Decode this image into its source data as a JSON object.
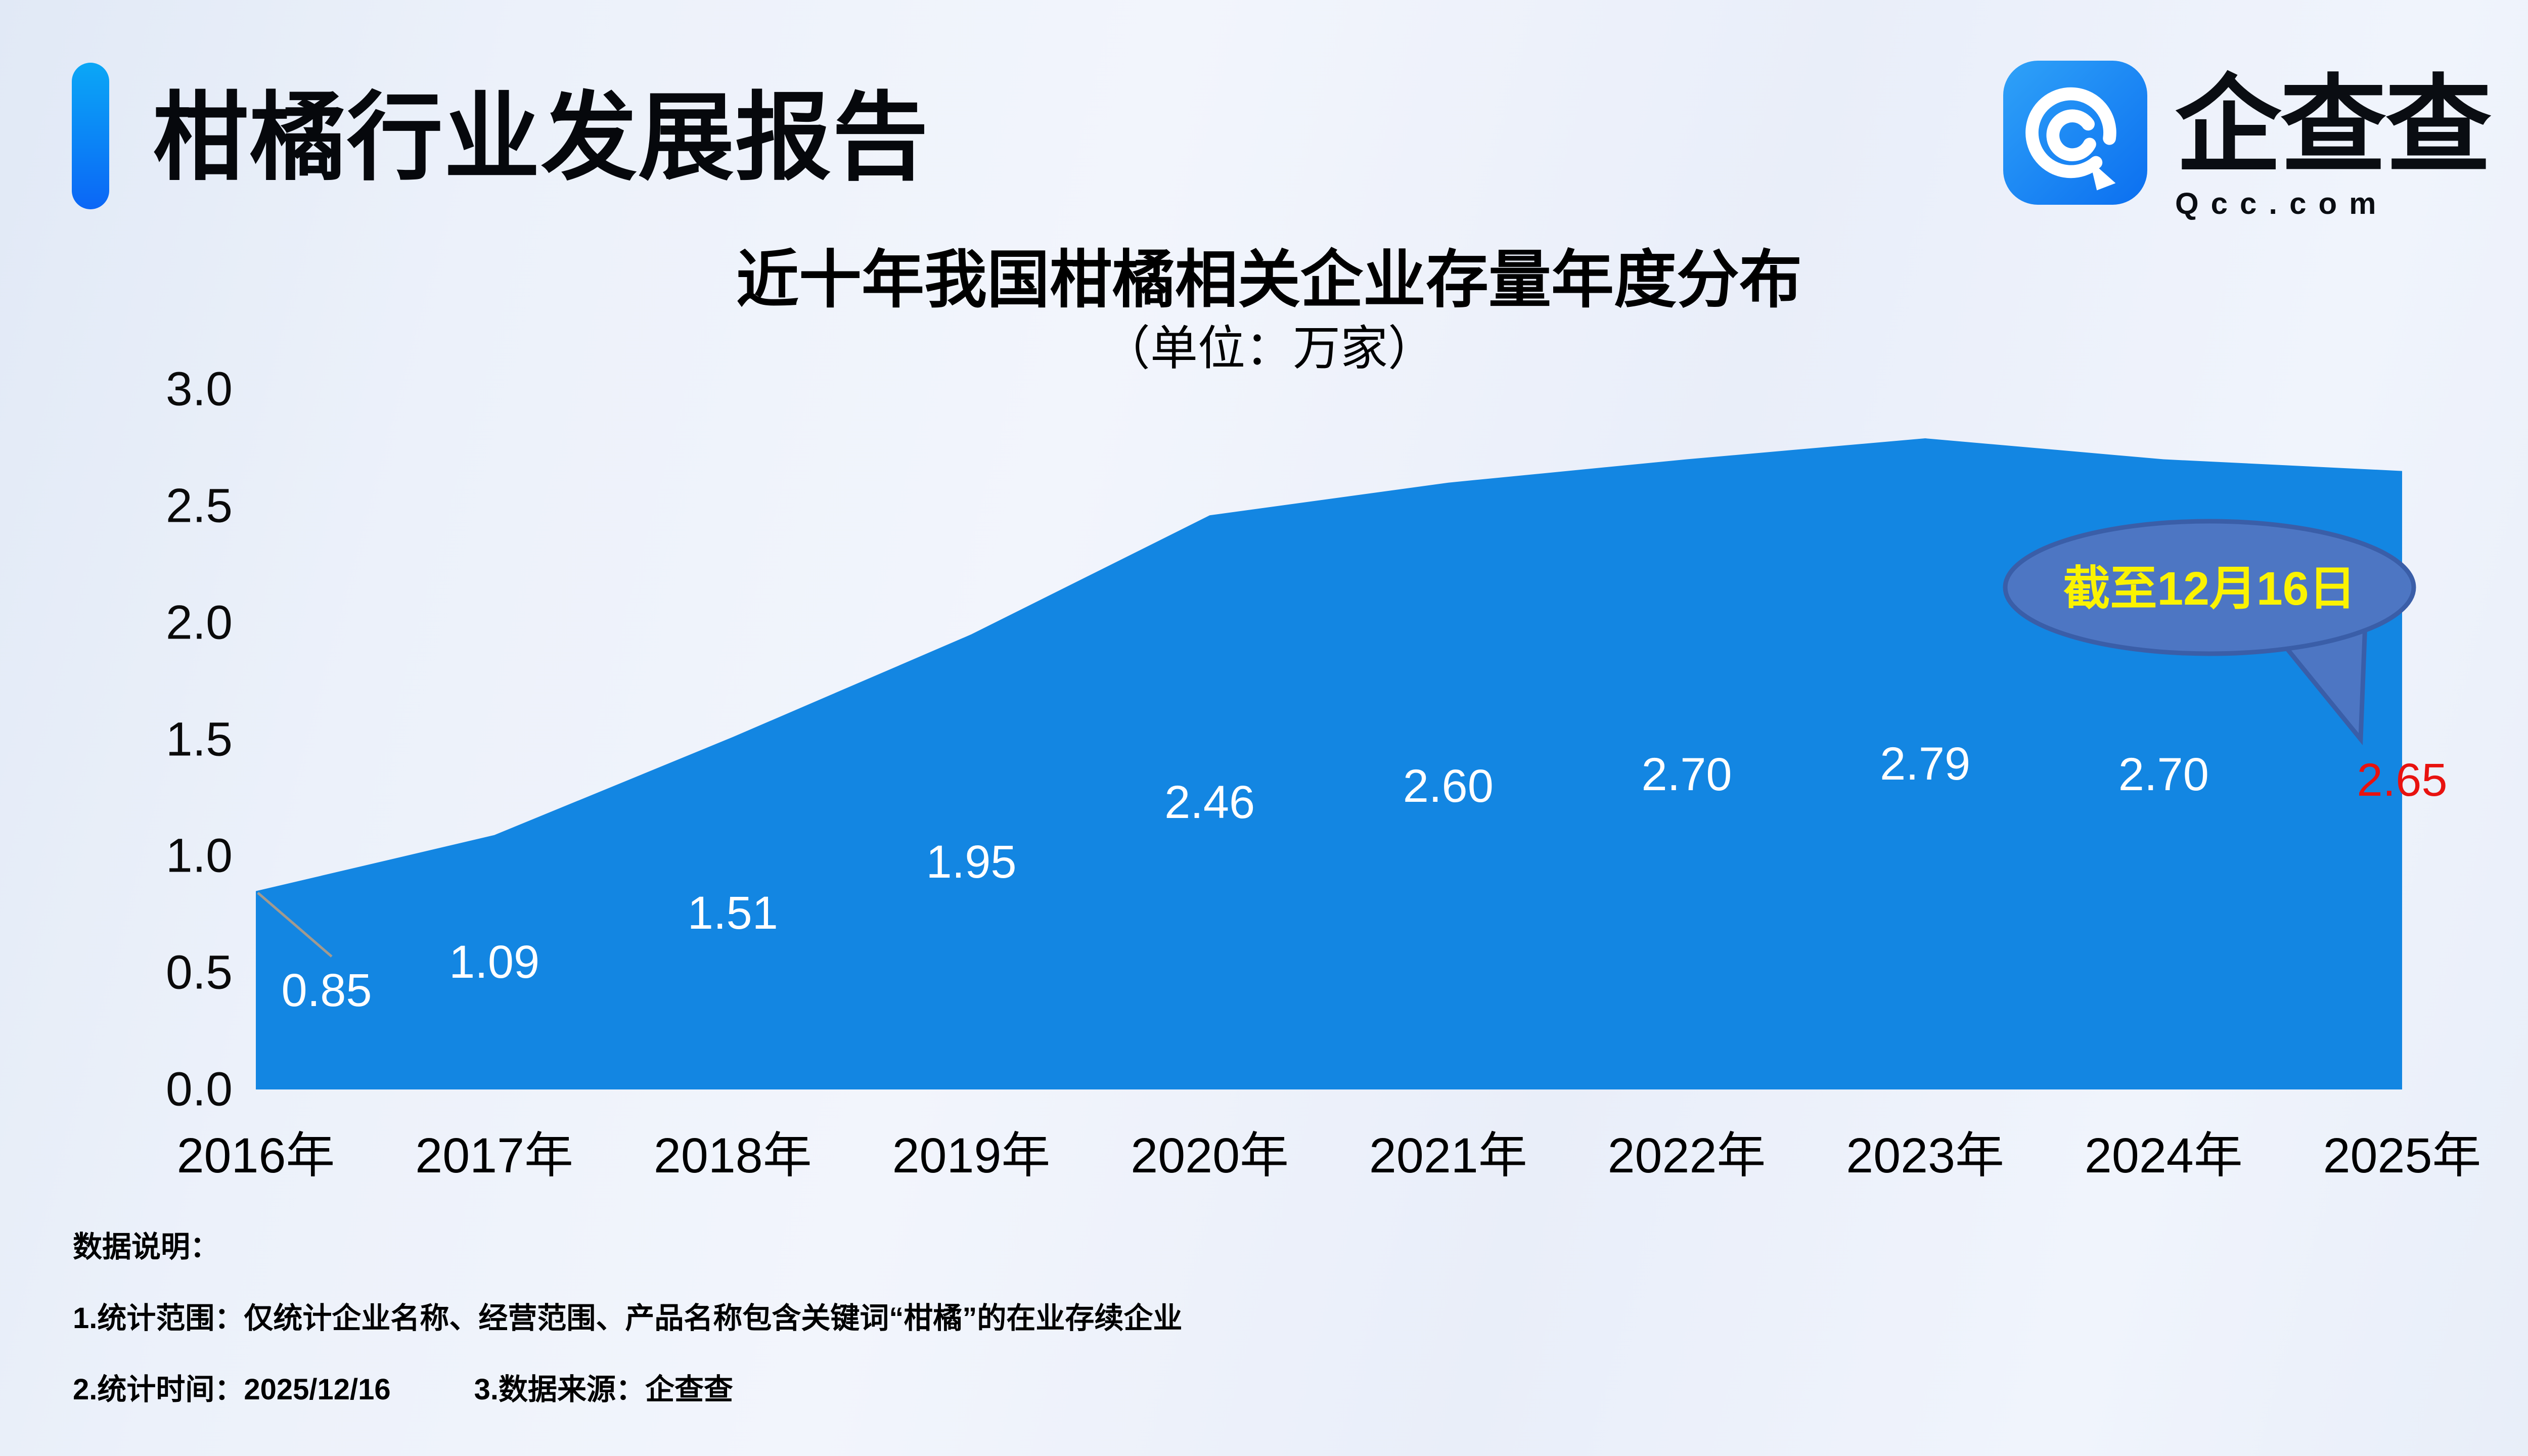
{
  "header": {
    "title": "柑橘行业发展报告",
    "logo": {
      "name": "企查查",
      "domain": "Qcc.com"
    }
  },
  "chart_data": {
    "type": "area",
    "title": "近十年我国柑橘相关企业存量年度分布",
    "subtitle": "（单位：万家）",
    "unit": "万家",
    "categories": [
      "2016年",
      "2017年",
      "2018年",
      "2019年",
      "2020年",
      "2021年",
      "2022年",
      "2023年",
      "2024年",
      "2025年"
    ],
    "values": [
      0.85,
      1.09,
      1.51,
      1.95,
      2.46,
      2.6,
      2.7,
      2.79,
      2.7,
      2.65
    ],
    "labels": [
      "0.85",
      "1.09",
      "1.51",
      "1.95",
      "2.46",
      "2.60",
      "2.70",
      "2.79",
      "2.70",
      "2.65"
    ],
    "ylim": [
      0,
      3.0
    ],
    "yticks": [
      "3.0",
      "2.5",
      "2.0",
      "1.5",
      "1.0",
      "0.5",
      "0.0"
    ],
    "grid": false,
    "legend": "none",
    "area_color": "#1386e2",
    "label_color": "#ffffff",
    "last_label_color": "#e8120f",
    "leader_color": "#a39a8e",
    "annotation": {
      "text": "截至12月16日",
      "text_color": "#fbf300",
      "fill": "#4d76c3",
      "border": "#3a5ea8"
    }
  },
  "notes": {
    "title": "数据说明：",
    "line1": "1.统计范围：仅统计企业名称、经营范围、产品名称包含关键词“柑橘”的在业存续企业",
    "line2a": "2.统计时间：2025/12/16",
    "line2b": "3.数据来源：企查查"
  }
}
